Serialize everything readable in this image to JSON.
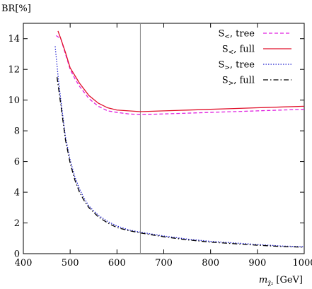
{
  "chart_data": {
    "type": "line",
    "ylabel": "BR[%]",
    "xlabel": {
      "symbol": "m",
      "subscript": "χ̃₂",
      "unit": "[GeV]"
    },
    "xlim": [
      400,
      1000
    ],
    "ylim": [
      0,
      15
    ],
    "xticks": [
      400,
      500,
      600,
      700,
      800,
      900,
      1000
    ],
    "yticks": [
      0,
      2,
      4,
      6,
      8,
      10,
      12,
      14
    ],
    "vline": 650,
    "legend_position": "top-right",
    "series": [
      {
        "name": "S<, tree",
        "label": {
          "base": "S",
          "sub": "<",
          "rest": ", tree"
        },
        "color": "#e020e0",
        "style": "dashed",
        "x": [
          470,
          480,
          490,
          500,
          510,
          520,
          530,
          540,
          560,
          580,
          600,
          625,
          650,
          700,
          750,
          800,
          850,
          900,
          950,
          1000
        ],
        "y": [
          14.2,
          14.0,
          13.0,
          12.0,
          11.4,
          10.9,
          10.5,
          10.1,
          9.6,
          9.3,
          9.2,
          9.1,
          9.05,
          9.1,
          9.15,
          9.2,
          9.25,
          9.3,
          9.35,
          9.4
        ]
      },
      {
        "name": "S<, full",
        "label": {
          "base": "S",
          "sub": "<",
          "rest": ", full"
        },
        "color": "#e0102a",
        "style": "solid",
        "x": [
          474,
          480,
          490,
          500,
          510,
          520,
          530,
          540,
          560,
          580,
          600,
          625,
          650,
          700,
          750,
          800,
          850,
          900,
          950,
          1000
        ],
        "y": [
          14.5,
          14.0,
          13.1,
          12.1,
          11.6,
          11.1,
          10.7,
          10.3,
          9.8,
          9.5,
          9.35,
          9.3,
          9.25,
          9.3,
          9.35,
          9.4,
          9.45,
          9.5,
          9.55,
          9.6
        ]
      },
      {
        "name": "S>, tree",
        "label": {
          "base": "S",
          "sub": ">",
          "rest": ", tree"
        },
        "color": "#2020d0",
        "style": "dotted",
        "x": [
          468,
          475,
          480,
          490,
          500,
          510,
          520,
          530,
          540,
          560,
          580,
          600,
          625,
          650,
          700,
          750,
          800,
          850,
          900,
          950,
          1000
        ],
        "y": [
          13.5,
          11.3,
          10.0,
          7.6,
          6.1,
          5.0,
          4.2,
          3.6,
          3.1,
          2.5,
          2.1,
          1.8,
          1.55,
          1.4,
          1.15,
          0.95,
          0.8,
          0.7,
          0.6,
          0.5,
          0.45
        ]
      },
      {
        "name": "S>, full",
        "label": {
          "base": "S",
          "sub": ">",
          "rest": ", full"
        },
        "color": "#000000",
        "style": "dashdot",
        "x": [
          472,
          480,
          490,
          500,
          510,
          520,
          530,
          540,
          560,
          580,
          600,
          625,
          650,
          700,
          750,
          800,
          850,
          900,
          950,
          1000
        ],
        "y": [
          11.5,
          9.7,
          7.4,
          5.9,
          4.8,
          4.0,
          3.45,
          3.0,
          2.4,
          2.0,
          1.7,
          1.5,
          1.35,
          1.1,
          0.9,
          0.75,
          0.65,
          0.55,
          0.47,
          0.42
        ]
      }
    ]
  }
}
